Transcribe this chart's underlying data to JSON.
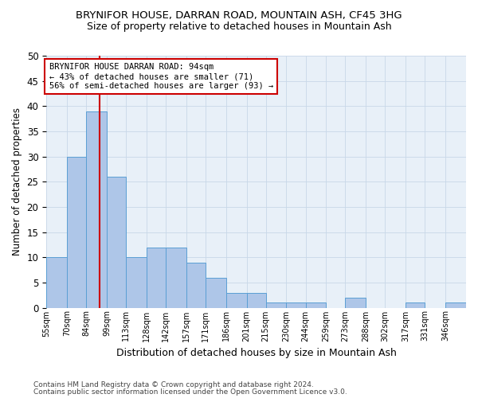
{
  "title": "BRYNIFOR HOUSE, DARRAN ROAD, MOUNTAIN ASH, CF45 3HG",
  "subtitle": "Size of property relative to detached houses in Mountain Ash",
  "xlabel": "Distribution of detached houses by size in Mountain Ash",
  "ylabel": "Number of detached properties",
  "bin_labels": [
    "55sqm",
    "70sqm",
    "84sqm",
    "99sqm",
    "113sqm",
    "128sqm",
    "142sqm",
    "157sqm",
    "171sqm",
    "186sqm",
    "201sqm",
    "215sqm",
    "230sqm",
    "244sqm",
    "259sqm",
    "273sqm",
    "288sqm",
    "302sqm",
    "317sqm",
    "331sqm",
    "346sqm"
  ],
  "bin_edges": [
    55,
    70,
    84,
    99,
    113,
    128,
    142,
    157,
    171,
    186,
    201,
    215,
    230,
    244,
    259,
    273,
    288,
    302,
    317,
    331,
    346,
    361
  ],
  "bar_values": [
    10,
    30,
    39,
    26,
    10,
    12,
    12,
    9,
    6,
    3,
    3,
    1,
    1,
    1,
    0,
    2,
    0,
    0,
    1,
    0,
    1
  ],
  "bar_color": "#aec6e8",
  "bar_edge_color": "#5a9fd4",
  "vline_x": 94,
  "vline_color": "#cc0000",
  "annotation_text": "BRYNIFOR HOUSE DARRAN ROAD: 94sqm\n← 43% of detached houses are smaller (71)\n56% of semi-detached houses are larger (93) →",
  "annotation_box_color": "#ffffff",
  "annotation_box_edge": "#cc0000",
  "grid_color": "#c8d8e8",
  "bg_color": "#e8f0f8",
  "ylim": [
    0,
    50
  ],
  "yticks": [
    0,
    5,
    10,
    15,
    20,
    25,
    30,
    35,
    40,
    45,
    50
  ],
  "title_fontsize": 9.5,
  "subtitle_fontsize": 9,
  "footer1": "Contains HM Land Registry data © Crown copyright and database right 2024.",
  "footer2": "Contains public sector information licensed under the Open Government Licence v3.0."
}
